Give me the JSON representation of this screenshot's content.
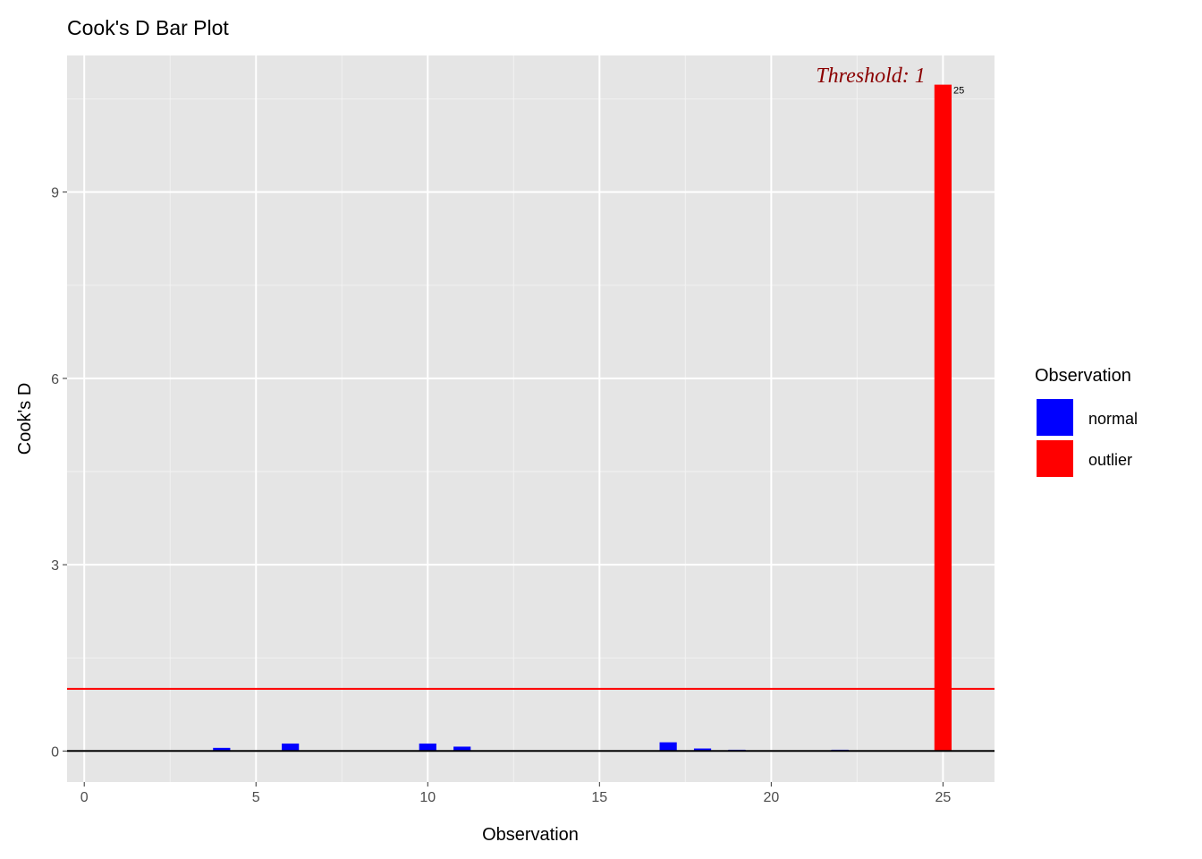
{
  "chart_data": {
    "type": "bar",
    "title": "Cook's D Bar Plot",
    "xlabel": "Observation",
    "ylabel": "Cook's D",
    "xlim": [
      -0.5,
      26.5
    ],
    "ylim": [
      -0.5,
      11.2
    ],
    "x_ticks": [
      0,
      5,
      10,
      15,
      20,
      25
    ],
    "y_ticks": [
      0,
      3,
      6,
      9
    ],
    "grid": true,
    "threshold": {
      "value": 1,
      "label": "Threshold: 1",
      "color": "#ff0000",
      "label_color": "#8b0000"
    },
    "x": [
      1,
      2,
      3,
      4,
      5,
      6,
      7,
      8,
      9,
      10,
      11,
      12,
      13,
      14,
      15,
      16,
      17,
      18,
      19,
      20,
      21,
      22,
      23,
      24,
      25
    ],
    "values": [
      0.003,
      0.002,
      0.003,
      0.05,
      0.004,
      0.12,
      0.003,
      0.002,
      0.003,
      0.12,
      0.07,
      0.003,
      0.002,
      0.003,
      0.002,
      0.003,
      0.14,
      0.04,
      0.02,
      0.003,
      0.002,
      0.02,
      0.003,
      0.002,
      10.73
    ],
    "groups": [
      "normal",
      "normal",
      "normal",
      "normal",
      "normal",
      "normal",
      "normal",
      "normal",
      "normal",
      "normal",
      "normal",
      "normal",
      "normal",
      "normal",
      "normal",
      "normal",
      "normal",
      "normal",
      "normal",
      "normal",
      "normal",
      "normal",
      "normal",
      "normal",
      "outlier"
    ],
    "point_labels": [
      {
        "x": 25,
        "label": "25"
      }
    ],
    "legend": {
      "title": "Observation",
      "placement": "right",
      "entries": [
        {
          "name": "normal",
          "color": "#0000ff"
        },
        {
          "name": "outlier",
          "color": "#ff0000"
        }
      ]
    }
  }
}
